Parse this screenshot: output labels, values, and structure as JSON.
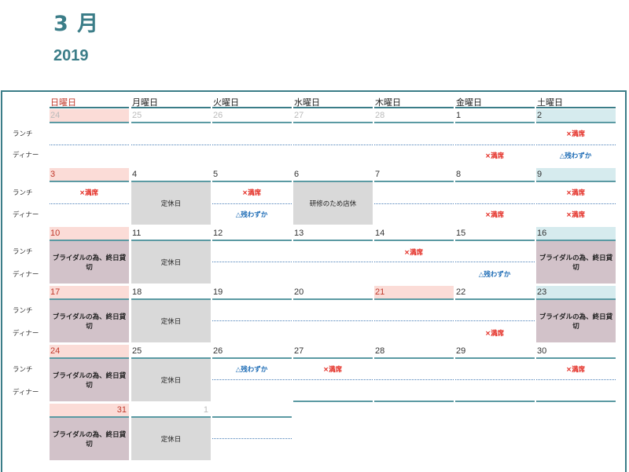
{
  "header": {
    "month": "3 月",
    "year": "2019"
  },
  "weekdays": [
    "日曜日",
    "月曜日",
    "火曜日",
    "水曜日",
    "木曜日",
    "金曜日",
    "土曜日"
  ],
  "colors": {
    "accent": "#3b7d88",
    "sunday_bg": "#fbdcd7",
    "saturday_bg": "#d6ebee",
    "full_red": "#e2231a",
    "few_blue": "#1f6db6",
    "closed_gray": "#d9d9d9",
    "bridal_mauve": "#d2c2c9"
  },
  "slots": {
    "lunch": "ランチ",
    "dinner": "ディナー"
  },
  "labels": {
    "full": "×満席",
    "few": "△残わずか",
    "closed": "定休日",
    "training": "研修のため店休",
    "bridal": "ブライダルの為、終日貸切"
  },
  "weeks": [
    [
      "24",
      "25",
      "26",
      "27",
      "28",
      "1",
      "2"
    ],
    [
      "3",
      "4",
      "5",
      "6",
      "7",
      "8",
      "9"
    ],
    [
      "10",
      "11",
      "12",
      "13",
      "14",
      "15",
      "16"
    ],
    [
      "17",
      "18",
      "19",
      "20",
      "21",
      "22",
      "23"
    ],
    [
      "24",
      "25",
      "26",
      "27",
      "28",
      "29",
      "30"
    ],
    [
      "31",
      "1"
    ]
  ]
}
